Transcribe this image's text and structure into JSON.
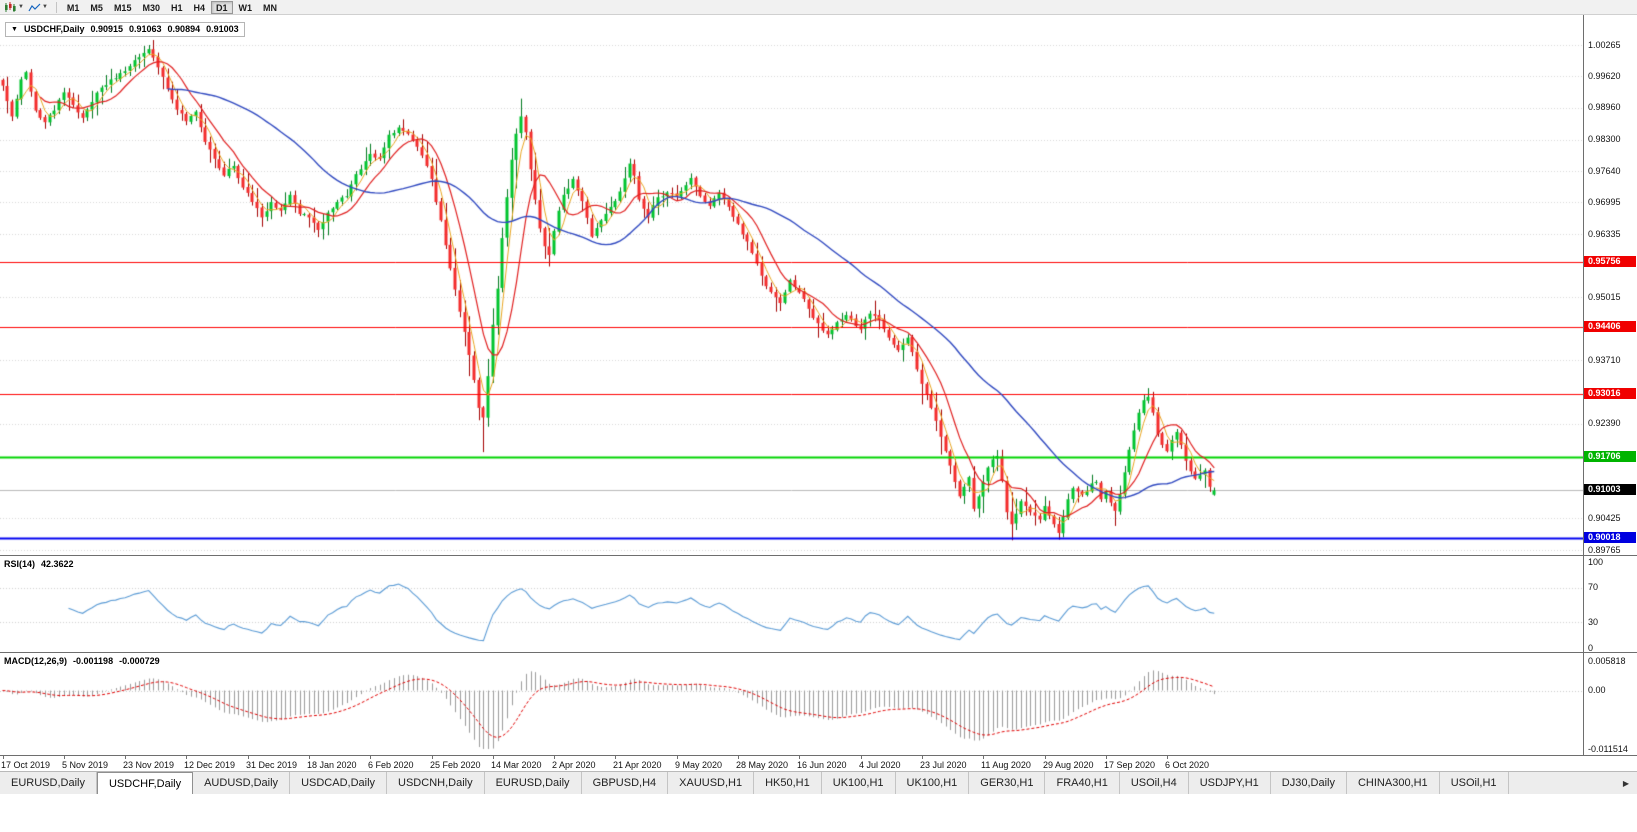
{
  "toolbar": {
    "timeframes": [
      "M1",
      "M5",
      "M15",
      "M30",
      "H1",
      "H4",
      "D1",
      "W1",
      "MN"
    ],
    "active_timeframe": "D1"
  },
  "chart_header": {
    "collapse_glyph": "▼",
    "symbol_period": "USDCHF,Daily",
    "open": "0.90915",
    "high": "0.91063",
    "low": "0.90894",
    "close": "0.91003"
  },
  "indicators": {
    "rsi": {
      "label": "RSI(14)",
      "value": "42.3622",
      "axis_labels": [
        "100",
        "70",
        "30",
        "0"
      ],
      "line_color": "#5b9bd5"
    },
    "macd": {
      "label": "MACD(12,26,9)",
      "value_main": "-0.001198",
      "value_signal": "-0.000729",
      "axis_top": "0.005818",
      "axis_zero": "0.00",
      "axis_bottom": "-0.011514",
      "histogram_color": "#9b9b9b",
      "signal_color": "#e00000"
    }
  },
  "price_axis": {
    "grid_labels": [
      {
        "text": "1.00265",
        "price": 1.00265
      },
      {
        "text": "0.99620",
        "price": 0.9962
      },
      {
        "text": "0.98960",
        "price": 0.9896
      },
      {
        "text": "0.98300",
        "price": 0.983
      },
      {
        "text": "0.97640",
        "price": 0.9764
      },
      {
        "text": "0.96995",
        "price": 0.96995
      },
      {
        "text": "0.96335",
        "price": 0.96335
      },
      {
        "text": "0.95015",
        "price": 0.95015
      },
      {
        "text": "0.93710",
        "price": 0.9371
      },
      {
        "text": "0.92390",
        "price": 0.9239
      },
      {
        "text": "0.90425",
        "price": 0.90425
      },
      {
        "text": "0.89765",
        "price": 0.89765
      }
    ],
    "level_badges": [
      {
        "text": "0.95756",
        "price": 0.95756,
        "color": "#f00000",
        "name": "resistance-level-badge-1"
      },
      {
        "text": "0.94406",
        "price": 0.94406,
        "color": "#f00000",
        "name": "resistance-level-badge-2"
      },
      {
        "text": "0.93016",
        "price": 0.93016,
        "color": "#f00000",
        "name": "resistance-level-badge-3"
      },
      {
        "text": "0.91706",
        "price": 0.91706,
        "color": "#00b400",
        "name": "support-level-badge"
      },
      {
        "text": "0.91003",
        "price": 0.91003,
        "color": "#000000",
        "name": "current-price-badge"
      },
      {
        "text": "0.90018",
        "price": 0.90018,
        "color": "#0000e0",
        "name": "lower-support-level-badge"
      }
    ]
  },
  "time_axis": {
    "labels": [
      {
        "text": "17 Oct 2019",
        "index": 0
      },
      {
        "text": "5 Nov 2019",
        "index": 13
      },
      {
        "text": "23 Nov 2019",
        "index": 26
      },
      {
        "text": "12 Dec 2019",
        "index": 39
      },
      {
        "text": "31 Dec 2019",
        "index": 52
      },
      {
        "text": "18 Jan 2020",
        "index": 65
      },
      {
        "text": "6 Feb 2020",
        "index": 78
      },
      {
        "text": "25 Feb 2020",
        "index": 91
      },
      {
        "text": "14 Mar 2020",
        "index": 104
      },
      {
        "text": "2 Apr 2020",
        "index": 117
      },
      {
        "text": "21 Apr 2020",
        "index": 130
      },
      {
        "text": "9 May 2020",
        "index": 143
      },
      {
        "text": "28 May 2020",
        "index": 156
      },
      {
        "text": "16 Jun 2020",
        "index": 169
      },
      {
        "text": "4 Jul 2020",
        "index": 182
      },
      {
        "text": "23 Jul 2020",
        "index": 195
      },
      {
        "text": "11 Aug 2020",
        "index": 208
      },
      {
        "text": "29 Aug 2020",
        "index": 221
      },
      {
        "text": "17 Sep 2020",
        "index": 234
      },
      {
        "text": "6 Oct 2020",
        "index": 247
      }
    ]
  },
  "tabs": {
    "items": [
      "EURUSD,Daily",
      "USDCHF,Daily",
      "AUDUSD,Daily",
      "USDCAD,Daily",
      "USDCNH,Daily",
      "EURUSD,Daily",
      "GBPUSD,H4",
      "XAUUSD,H1",
      "HK50,H1",
      "UK100,H1",
      "UK100,H1",
      "GER30,H1",
      "FRA40,H1",
      "USOil,H4",
      "USDJPY,H1",
      "DJ30,Daily",
      "CHINA300,H1",
      "USOil,H1"
    ],
    "active_index": 1,
    "scroll_icon": "▶"
  },
  "chart_data": {
    "type": "candlestick",
    "symbol": "USDCHF",
    "timeframe": "Daily",
    "price_min": 0.89765,
    "price_max": 1.00265,
    "candle_count": 258,
    "current_price": 0.91003,
    "last_candle": {
      "open": 0.90915,
      "high": 0.91063,
      "low": 0.90894,
      "close": 0.91003
    },
    "up_color": "#00c42e",
    "up_border": "#007a1f",
    "down_color": "#f42c2c",
    "down_border": "#a40000",
    "grid_color": "#d6d6d6",
    "bid_line_color": "#b9b9b9",
    "moving_averages": [
      {
        "period": 4,
        "color": "#e8a520",
        "width": 1
      },
      {
        "period": 9,
        "color": "#e02020",
        "width": 1.2
      },
      {
        "period": 36,
        "color": "#3049c0",
        "width": 1.4
      }
    ],
    "horizontal_lines": [
      {
        "price": 0.95756,
        "color": "#ff0000",
        "width": 1
      },
      {
        "price": 0.94406,
        "color": "#ff0000",
        "width": 1
      },
      {
        "price": 0.93016,
        "color": "#ff0000",
        "width": 1
      },
      {
        "price": 0.91706,
        "color": "#00d400",
        "width": 2
      },
      {
        "price": 0.90018,
        "color": "#0000f0",
        "width": 2
      }
    ],
    "rsi_period": 14,
    "macd_params": {
      "fast": 12,
      "slow": 26,
      "signal": 9
    },
    "macd_axis_range": {
      "max": 0.005818,
      "min": -0.011514
    },
    "close_anchors": [
      [
        0,
        0.9942
      ],
      [
        2,
        0.9878
      ],
      [
        4,
        0.9955
      ],
      [
        5,
        0.997
      ],
      [
        7,
        0.989
      ],
      [
        9,
        0.9866
      ],
      [
        11,
        0.989
      ],
      [
        13,
        0.9928
      ],
      [
        15,
        0.9902
      ],
      [
        17,
        0.9875
      ],
      [
        19,
        0.9908
      ],
      [
        21,
        0.9938
      ],
      [
        23,
        0.9955
      ],
      [
        25,
        0.9968
      ],
      [
        26,
        0.9972
      ],
      [
        28,
        0.9995
      ],
      [
        30,
        1.001
      ],
      [
        31,
        1.0018
      ],
      [
        33,
        0.998
      ],
      [
        35,
        0.9935
      ],
      [
        37,
        0.9892
      ],
      [
        39,
        0.9868
      ],
      [
        41,
        0.9888
      ],
      [
        43,
        0.9825
      ],
      [
        45,
        0.979
      ],
      [
        47,
        0.9755
      ],
      [
        49,
        0.9775
      ],
      [
        51,
        0.973
      ],
      [
        53,
        0.97
      ],
      [
        55,
        0.9668
      ],
      [
        57,
        0.97
      ],
      [
        59,
        0.9682
      ],
      [
        61,
        0.9715
      ],
      [
        63,
        0.9675
      ],
      [
        65,
        0.9668
      ],
      [
        67,
        0.9642
      ],
      [
        69,
        0.9678
      ],
      [
        71,
        0.97
      ],
      [
        73,
        0.9712
      ],
      [
        75,
        0.9758
      ],
      [
        77,
        0.9785
      ],
      [
        78,
        0.98
      ],
      [
        80,
        0.979
      ],
      [
        82,
        0.984
      ],
      [
        84,
        0.9855
      ],
      [
        86,
        0.9842
      ],
      [
        88,
        0.9815
      ],
      [
        90,
        0.9775
      ],
      [
        91,
        0.9748
      ],
      [
        92,
        0.97
      ],
      [
        93,
        0.9662
      ],
      [
        94,
        0.961
      ],
      [
        95,
        0.9562
      ],
      [
        96,
        0.9518
      ],
      [
        97,
        0.9472
      ],
      [
        98,
        0.943
      ],
      [
        99,
        0.9382
      ],
      [
        100,
        0.933
      ],
      [
        101,
        0.9272
      ],
      [
        102,
        0.9252
      ],
      [
        103,
        0.9338
      ],
      [
        104,
        0.9445
      ],
      [
        105,
        0.952
      ],
      [
        106,
        0.9625
      ],
      [
        107,
        0.971
      ],
      [
        108,
        0.9788
      ],
      [
        109,
        0.9842
      ],
      [
        110,
        0.9878
      ],
      [
        111,
        0.9845
      ],
      [
        112,
        0.9768
      ],
      [
        113,
        0.9705
      ],
      [
        114,
        0.9645
      ],
      [
        115,
        0.9608
      ],
      [
        116,
        0.959
      ],
      [
        117,
        0.964
      ],
      [
        118,
        0.9682
      ],
      [
        119,
        0.9715
      ],
      [
        121,
        0.9748
      ],
      [
        123,
        0.9702
      ],
      [
        125,
        0.9628
      ],
      [
        127,
        0.9662
      ],
      [
        129,
        0.969
      ],
      [
        130,
        0.9702
      ],
      [
        131,
        0.9722
      ],
      [
        133,
        0.978
      ],
      [
        134,
        0.9755
      ],
      [
        135,
        0.9705
      ],
      [
        137,
        0.9668
      ],
      [
        139,
        0.971
      ],
      [
        141,
        0.972
      ],
      [
        143,
        0.9712
      ],
      [
        145,
        0.9735
      ],
      [
        146,
        0.975
      ],
      [
        148,
        0.9712
      ],
      [
        150,
        0.9692
      ],
      [
        152,
        0.9718
      ],
      [
        154,
        0.969
      ],
      [
        156,
        0.9655
      ],
      [
        158,
        0.9618
      ],
      [
        160,
        0.9572
      ],
      [
        162,
        0.9525
      ],
      [
        164,
        0.9502
      ],
      [
        165,
        0.949
      ],
      [
        166,
        0.9512
      ],
      [
        167,
        0.9538
      ],
      [
        169,
        0.9512
      ],
      [
        171,
        0.9478
      ],
      [
        173,
        0.9448
      ],
      [
        175,
        0.9425
      ],
      [
        177,
        0.945
      ],
      [
        179,
        0.9465
      ],
      [
        181,
        0.9442
      ],
      [
        182,
        0.9435
      ],
      [
        184,
        0.9468
      ],
      [
        186,
        0.9455
      ],
      [
        188,
        0.9418
      ],
      [
        190,
        0.9392
      ],
      [
        192,
        0.9418
      ],
      [
        193,
        0.9388
      ],
      [
        194,
        0.9352
      ],
      [
        195,
        0.9322
      ],
      [
        196,
        0.93
      ],
      [
        197,
        0.9272
      ],
      [
        198,
        0.9245
      ],
      [
        199,
        0.9212
      ],
      [
        200,
        0.9182
      ],
      [
        201,
        0.9152
      ],
      [
        202,
        0.9118
      ],
      [
        203,
        0.9088
      ],
      [
        204,
        0.9108
      ],
      [
        205,
        0.9128
      ],
      [
        206,
        0.9062
      ],
      [
        207,
        0.9088
      ],
      [
        208,
        0.9118
      ],
      [
        209,
        0.9148
      ],
      [
        210,
        0.9165
      ],
      [
        211,
        0.9172
      ],
      [
        212,
        0.912
      ],
      [
        213,
        0.9055
      ],
      [
        214,
        0.903
      ],
      [
        215,
        0.9052
      ],
      [
        216,
        0.9078
      ],
      [
        217,
        0.9068
      ],
      [
        218,
        0.9055
      ],
      [
        219,
        0.9048
      ],
      [
        220,
        0.904
      ],
      [
        221,
        0.9068
      ],
      [
        222,
        0.9048
      ],
      [
        223,
        0.903
      ],
      [
        224,
        0.9012
      ],
      [
        225,
        0.9045
      ],
      [
        226,
        0.9082
      ],
      [
        227,
        0.9105
      ],
      [
        228,
        0.9098
      ],
      [
        229,
        0.9092
      ],
      [
        230,
        0.9098
      ],
      [
        231,
        0.9115
      ],
      [
        232,
        0.9118
      ],
      [
        233,
        0.9082
      ],
      [
        234,
        0.9098
      ],
      [
        235,
        0.9075
      ],
      [
        236,
        0.9058
      ],
      [
        237,
        0.9092
      ],
      [
        238,
        0.9138
      ],
      [
        239,
        0.9185
      ],
      [
        240,
        0.9225
      ],
      [
        241,
        0.9262
      ],
      [
        242,
        0.9288
      ],
      [
        243,
        0.9295
      ],
      [
        244,
        0.9262
      ],
      [
        245,
        0.9218
      ],
      [
        246,
        0.9195
      ],
      [
        247,
        0.9182
      ],
      [
        248,
        0.9205
      ],
      [
        249,
        0.9222
      ],
      [
        250,
        0.9195
      ],
      [
        251,
        0.9162
      ],
      [
        252,
        0.914
      ],
      [
        253,
        0.9125
      ],
      [
        254,
        0.9132
      ],
      [
        255,
        0.9142
      ],
      [
        256,
        0.9108
      ],
      [
        257,
        0.91003
      ]
    ],
    "special_candles": [
      {
        "i": 31,
        "high": 1.00265
      },
      {
        "i": 102,
        "low": 0.918
      },
      {
        "i": 110,
        "high": 0.9915
      },
      {
        "i": 224,
        "low": 0.8998
      },
      {
        "i": 257,
        "open": 0.90915,
        "high": 0.91063,
        "low": 0.90894,
        "close": 0.91003
      }
    ]
  }
}
